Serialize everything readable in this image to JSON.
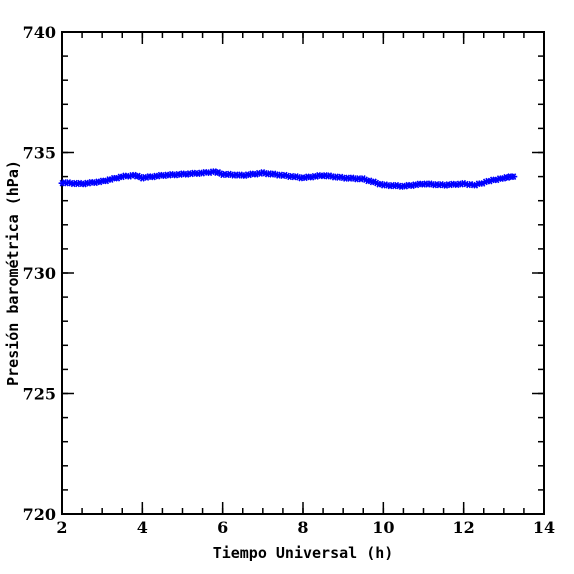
{
  "chart_data": {
    "type": "scatter",
    "title": "",
    "xlabel": "Tiempo Universal (h)",
    "ylabel": "Presión barométrica (hPa)",
    "xlim": [
      2,
      14
    ],
    "ylim": [
      720,
      740
    ],
    "x_ticks": [
      2,
      4,
      6,
      8,
      10,
      12,
      14
    ],
    "y_ticks": [
      720,
      725,
      730,
      735,
      740
    ],
    "x_tick_labels": [
      "2",
      "4",
      "6",
      "8",
      "10",
      "12",
      "14"
    ],
    "y_tick_labels": [
      "720",
      "725",
      "730",
      "735",
      "740"
    ],
    "x_minor_step": 0.5,
    "y_minor_step": 1,
    "grid": false,
    "marker": "star",
    "series": [
      {
        "color": "#0000ff",
        "points": [
          [
            2.0,
            733.75
          ],
          [
            2.5,
            733.7
          ],
          [
            3.0,
            733.8
          ],
          [
            3.5,
            734.0
          ],
          [
            3.8,
            734.05
          ],
          [
            4.0,
            733.95
          ],
          [
            4.5,
            734.05
          ],
          [
            5.0,
            734.1
          ],
          [
            5.5,
            734.15
          ],
          [
            5.8,
            734.2
          ],
          [
            6.0,
            734.1
          ],
          [
            6.5,
            734.05
          ],
          [
            7.0,
            734.15
          ],
          [
            7.5,
            734.05
          ],
          [
            8.0,
            733.95
          ],
          [
            8.5,
            734.05
          ],
          [
            9.0,
            733.95
          ],
          [
            9.5,
            733.9
          ],
          [
            10.0,
            733.65
          ],
          [
            10.5,
            733.6
          ],
          [
            11.0,
            733.7
          ],
          [
            11.5,
            733.65
          ],
          [
            12.0,
            733.7
          ],
          [
            12.3,
            733.65
          ],
          [
            12.6,
            733.8
          ],
          [
            13.0,
            733.95
          ],
          [
            13.25,
            734.0
          ]
        ]
      }
    ]
  }
}
